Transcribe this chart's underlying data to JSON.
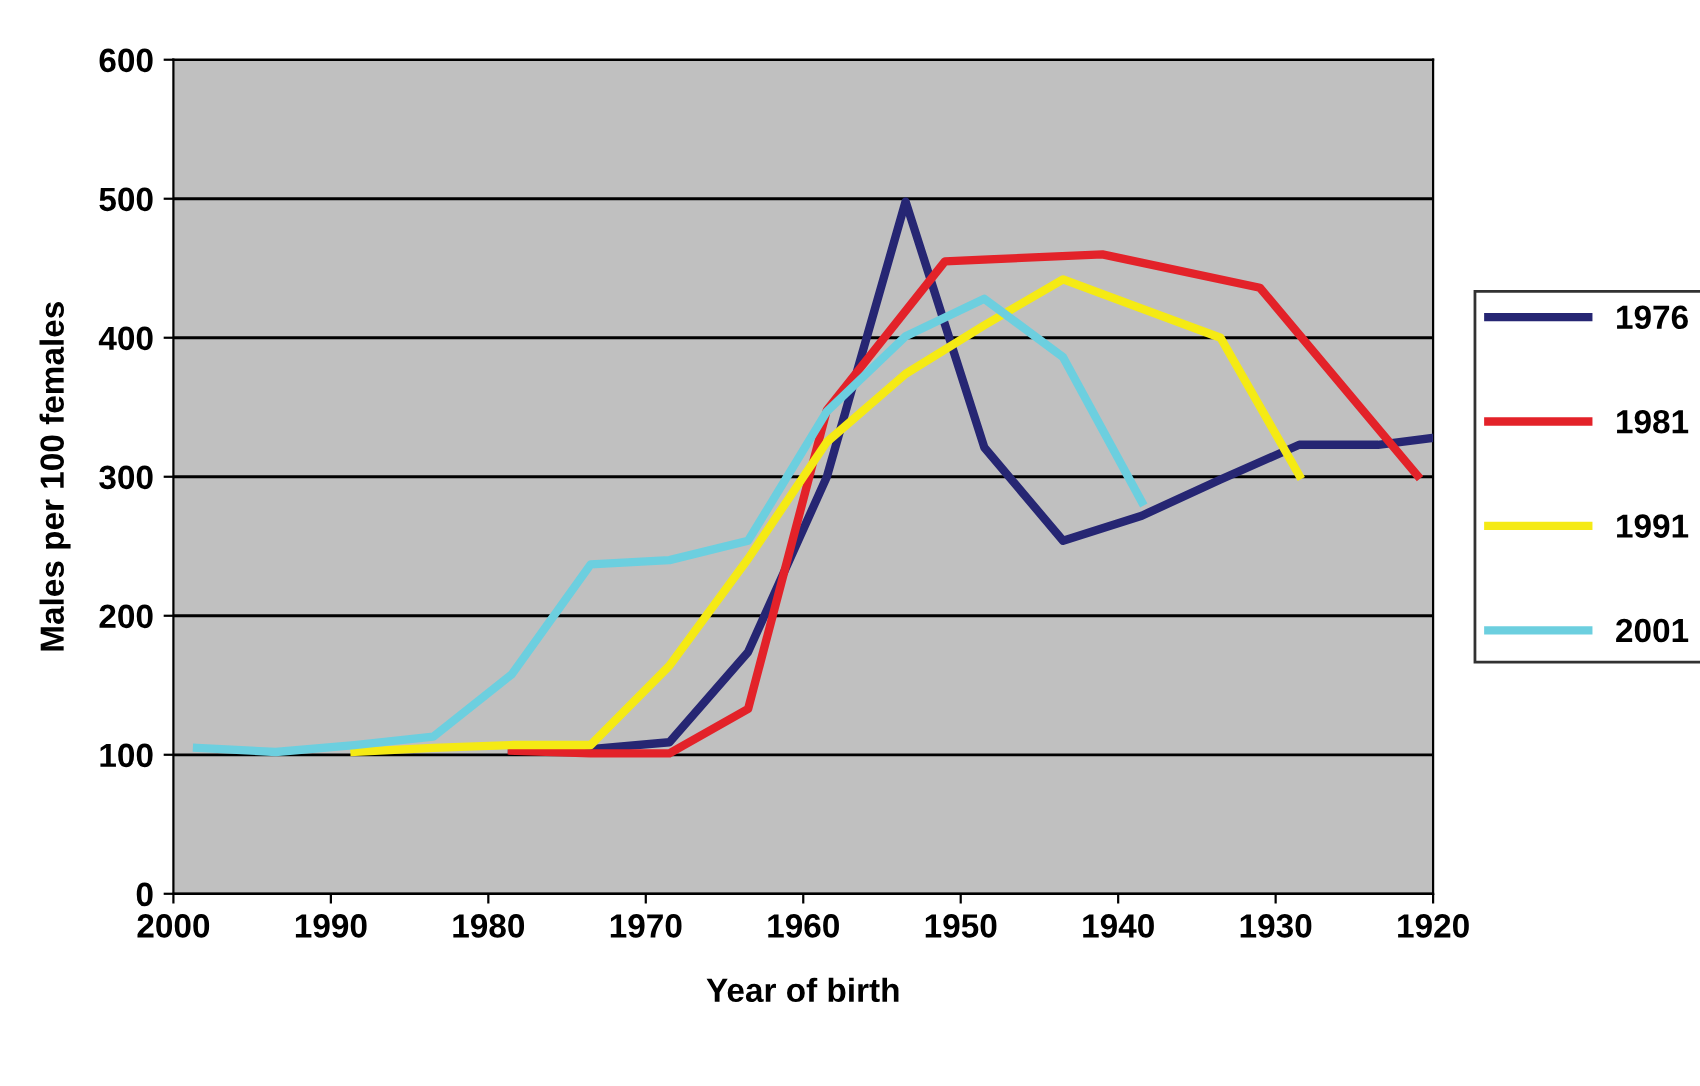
{
  "chart_data": {
    "type": "line",
    "xlabel": "Year of birth",
    "ylabel": "Males per 100 females",
    "xlim": [
      2000,
      1920
    ],
    "xticks": [
      2000,
      1990,
      1980,
      1970,
      1960,
      1950,
      1940,
      1930,
      1920
    ],
    "ylim": [
      0,
      600
    ],
    "yticks": [
      0,
      100,
      200,
      300,
      400,
      500,
      600
    ],
    "grid": "y",
    "legend": "right",
    "marker": "none",
    "line_style": "solid",
    "series": [
      {
        "name": "1976",
        "color": "#262673",
        "x": [
          1978.5,
          1973.5,
          1968.5,
          1963.5,
          1958.5,
          1953.5,
          1948.5,
          1943.5,
          1938.5,
          1933.5,
          1928.5,
          1923.5,
          1920
        ],
        "values": [
          104,
          104,
          109,
          174,
          300,
          498,
          321,
          254,
          272,
          298,
          323,
          323,
          328
        ]
      },
      {
        "name": "1981",
        "color": "#e32229",
        "x": [
          1978.5,
          1973.5,
          1968.5,
          1963.5,
          1958.5,
          1951,
          1941,
          1931,
          1921
        ],
        "values": [
          103,
          101,
          101,
          133,
          348,
          455,
          460,
          436,
          301
        ]
      },
      {
        "name": "1991",
        "color": "#f5ea14",
        "x": [
          1988.5,
          1983.5,
          1978.5,
          1973.5,
          1968.5,
          1963.5,
          1958.5,
          1953.5,
          1948.5,
          1943.5,
          1938.5,
          1933.5,
          1928.5
        ],
        "values": [
          102,
          105,
          107,
          107,
          164,
          241,
          325,
          374,
          409,
          442,
          421,
          400,
          301
        ]
      },
      {
        "name": "2001",
        "color": "#6ccfdf",
        "x": [
          1998.5,
          1993.5,
          1988.5,
          1983.5,
          1978.5,
          1973.5,
          1968.5,
          1963.5,
          1958.5,
          1953.5,
          1948.5,
          1943.5,
          1938.5
        ],
        "values": [
          105,
          102,
          107,
          113,
          158,
          237,
          240,
          254,
          347,
          401,
          428,
          386,
          282
        ]
      }
    ]
  }
}
